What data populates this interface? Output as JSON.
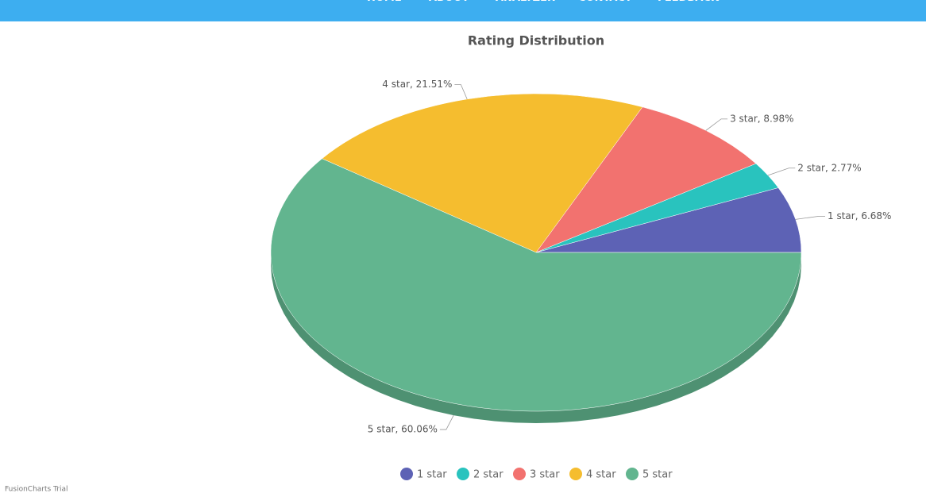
{
  "nav": {
    "items": [
      "HOME",
      "ABOUT",
      "ANALYZER",
      "CONTACT",
      "FEEDBACK"
    ]
  },
  "chart_data": {
    "type": "pie",
    "title": "Rating Distribution",
    "categories": [
      "1 star",
      "2 star",
      "3 star",
      "4 star",
      "5 star"
    ],
    "values": [
      6.68,
      2.77,
      8.98,
      21.51,
      60.06
    ],
    "value_labels": [
      "1 star, 6.68%",
      "2 star, 2.77%",
      "3 star, 8.98%",
      "4 star, 21.51%",
      "5 star, 60.06%"
    ],
    "colors": [
      "#5d62b5",
      "#29c3be",
      "#f2726f",
      "#f5bd2f",
      "#62b58f"
    ],
    "legend": "bottom"
  },
  "footer": {
    "watermark": "FusionCharts Trial"
  }
}
